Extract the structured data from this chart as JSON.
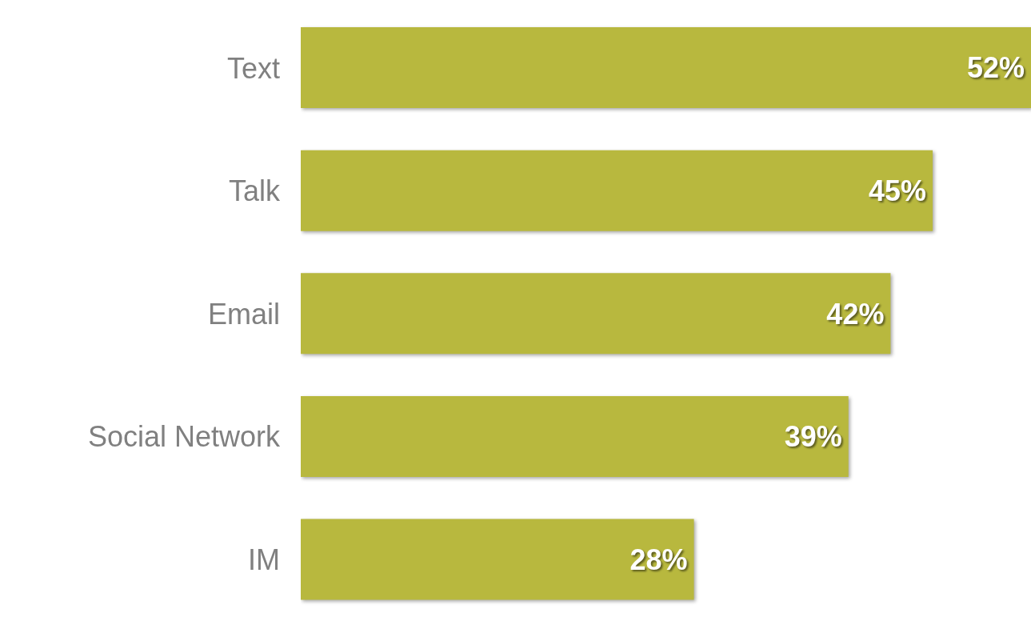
{
  "chart_data": {
    "type": "bar",
    "orientation": "horizontal",
    "categories": [
      "Text",
      "Talk",
      "Email",
      "Social Network",
      "IM"
    ],
    "values": [
      52,
      45,
      42,
      39,
      28
    ],
    "color": "#b8b83e",
    "value_labels": [
      "52%",
      "45%",
      "42%",
      "39%",
      "28%"
    ],
    "grid": false,
    "legend": false
  }
}
